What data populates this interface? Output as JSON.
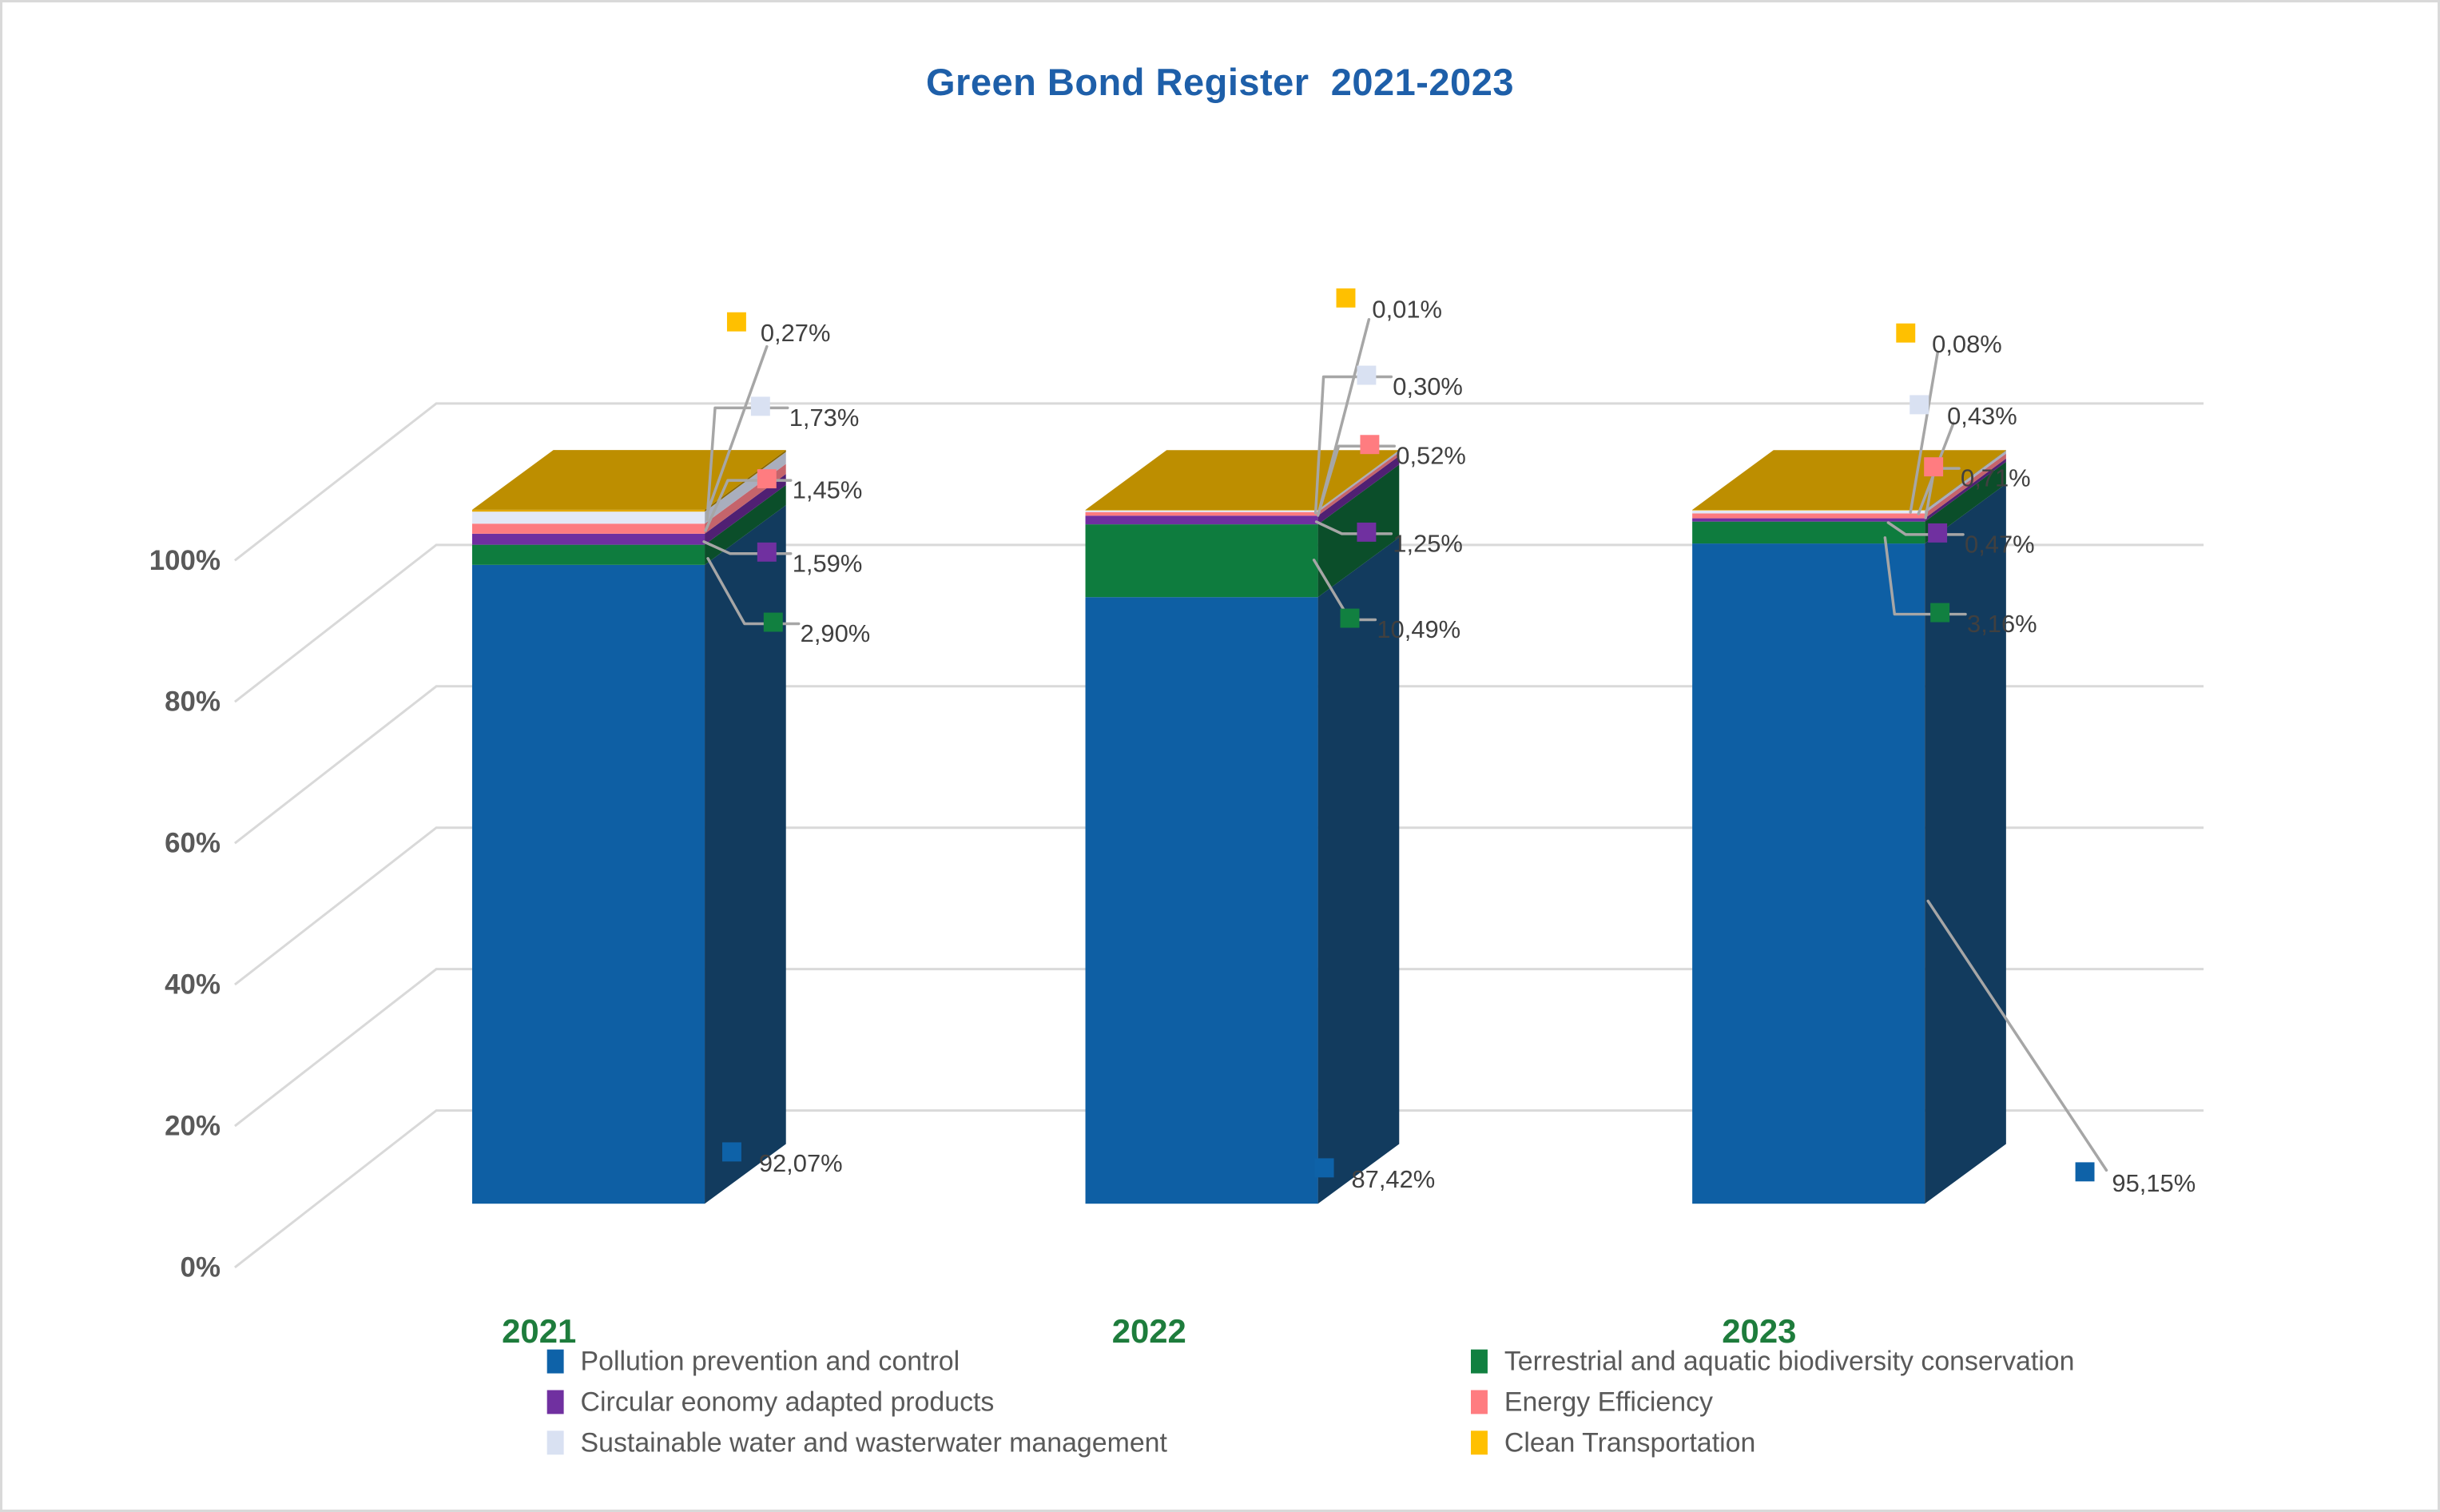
{
  "title": "Green Bond Register  2021-2023",
  "colors": {
    "title_text": "#1E5FA9",
    "category_text": "#1E7C3C",
    "data_label_text": "#404040",
    "axis_tick_text": "#595959",
    "legend_text": "#595959",
    "gridline": "#D9D9D9",
    "leader_line": "#A6A6A6",
    "border": "#D9D9D9",
    "background": "#FFFFFF"
  },
  "chart_data": {
    "type": "bar",
    "variant": "3d-stacked-column-100pct",
    "title": "Green Bond Register  2021-2023",
    "categories": [
      "2021",
      "2022",
      "2023"
    ],
    "series": [
      {
        "name": "Pollution prevention and control",
        "color": "#0E62A8",
        "values": [
          92.07,
          87.42,
          95.15
        ],
        "labels": [
          "92,07%",
          "87,42%",
          "95,15%"
        ]
      },
      {
        "name": "Terrestrial and aquatic biodiversity conservation",
        "color": "#118040",
        "values": [
          2.9,
          10.49,
          3.16
        ],
        "labels": [
          "2,90%",
          "10,49%",
          "3,16%"
        ]
      },
      {
        "name": "Circular eonomy adapted products",
        "color": "#7030A0",
        "values": [
          1.59,
          1.25,
          0.47
        ],
        "labels": [
          "1,59%",
          "1,25%",
          "0,47%"
        ]
      },
      {
        "name": "Energy Efficiency",
        "color": "#FF7C80",
        "values": [
          1.45,
          0.52,
          0.71
        ],
        "labels": [
          "1,45%",
          "0,52%",
          "0,71%"
        ]
      },
      {
        "name": "Sustainable water and wasterwater management",
        "color": "#D9E1F2",
        "values": [
          1.73,
          0.3,
          0.43
        ],
        "labels": [
          "1,73%",
          "0,30%",
          "0,43%"
        ]
      },
      {
        "name": "Clean Transportation",
        "color": "#FFC000",
        "values": [
          0.27,
          0.01,
          0.08
        ],
        "labels": [
          "0,27%",
          "0,01%",
          "0,08%"
        ]
      }
    ],
    "stack_order_bottom_to_top": [
      "Pollution prevention and control",
      "Terrestrial and aquatic biodiversity conservation",
      "Circular eonomy adapted products",
      "Energy Efficiency",
      "Sustainable water and wasterwater management",
      "Clean Transportation"
    ],
    "y_axis": {
      "min": 0,
      "max": 100,
      "ticks": [
        "0%",
        "20%",
        "40%",
        "60%",
        "80%",
        "100%"
      ]
    },
    "grid": true,
    "legend_position": "bottom-two-columns"
  }
}
